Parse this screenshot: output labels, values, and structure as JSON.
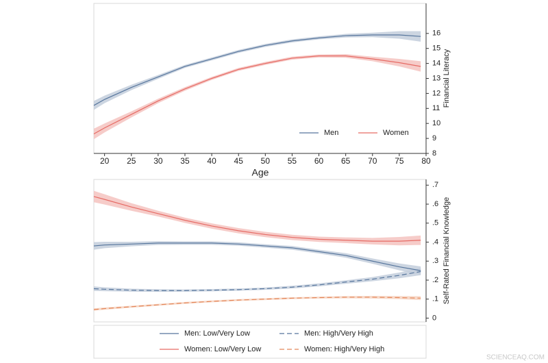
{
  "chart_data": [
    {
      "type": "line",
      "x_label": "Age",
      "y_label": "Financial Literacy",
      "y_axis_side": "right",
      "legend": "bottom-right",
      "x": [
        18,
        20,
        25,
        30,
        35,
        40,
        45,
        50,
        55,
        60,
        65,
        70,
        75,
        79
      ],
      "xlim": [
        18,
        80
      ],
      "xticks": [
        20,
        25,
        30,
        35,
        40,
        45,
        50,
        55,
        60,
        65,
        70,
        75,
        80
      ],
      "ylim": [
        8,
        18
      ],
      "yticks": [
        8,
        9,
        10,
        11,
        12,
        13,
        14,
        15,
        16
      ],
      "series": [
        {
          "name": "Men",
          "color": "#56759c",
          "band_color": "#c3cedc",
          "dash": false,
          "values": [
            11.2,
            11.6,
            12.4,
            13.1,
            13.8,
            14.3,
            14.8,
            15.2,
            15.5,
            15.7,
            15.85,
            15.9,
            15.9,
            15.8
          ],
          "lower": [
            10.9,
            11.35,
            12.22,
            12.97,
            13.7,
            14.2,
            14.7,
            15.1,
            15.4,
            15.6,
            15.73,
            15.75,
            15.65,
            15.45
          ],
          "upper": [
            11.5,
            11.85,
            12.58,
            13.23,
            13.9,
            14.4,
            14.9,
            15.3,
            15.6,
            15.8,
            15.97,
            16.05,
            16.15,
            16.15
          ]
        },
        {
          "name": "Women",
          "color": "#e66a64",
          "band_color": "#f5c3bf",
          "dash": false,
          "values": [
            9.3,
            9.7,
            10.6,
            11.5,
            12.3,
            13.0,
            13.6,
            14.0,
            14.35,
            14.5,
            14.5,
            14.3,
            14.05,
            13.8
          ],
          "lower": [
            8.95,
            9.4,
            10.4,
            11.35,
            12.18,
            12.9,
            13.5,
            13.9,
            14.25,
            14.4,
            14.38,
            14.15,
            13.8,
            13.45
          ],
          "upper": [
            9.65,
            10.0,
            10.8,
            11.65,
            12.42,
            13.1,
            13.7,
            14.1,
            14.45,
            14.6,
            14.62,
            14.45,
            14.3,
            14.15
          ]
        }
      ]
    },
    {
      "type": "line",
      "y_label": "Self-Rated Financial Knowledge",
      "y_axis_side": "right",
      "legend": "below",
      "x": [
        18,
        20,
        25,
        30,
        35,
        40,
        45,
        50,
        55,
        60,
        65,
        70,
        75,
        79
      ],
      "xlim": [
        18,
        80
      ],
      "ylim": [
        -0.02,
        0.73
      ],
      "yticks": [
        0,
        {
          "value": 0.1,
          "label": ".1"
        },
        {
          "value": 0.2,
          "label": ".2"
        },
        {
          "value": 0.3,
          "label": ".3"
        },
        {
          "value": 0.4,
          "label": ".4"
        },
        {
          "value": 0.5,
          "label": ".5"
        },
        {
          "value": 0.6,
          "label": ".6"
        },
        {
          "value": 0.7,
          "label": ".7"
        }
      ],
      "series": [
        {
          "name": "Men: Low/Very Low",
          "color": "#56759c",
          "band_color": "#c3cedc",
          "dash": false,
          "values": [
            0.38,
            0.385,
            0.39,
            0.395,
            0.395,
            0.395,
            0.39,
            0.38,
            0.37,
            0.35,
            0.33,
            0.3,
            0.27,
            0.25
          ],
          "lower": [
            0.36,
            0.368,
            0.378,
            0.385,
            0.386,
            0.386,
            0.381,
            0.371,
            0.36,
            0.34,
            0.318,
            0.286,
            0.252,
            0.228
          ],
          "upper": [
            0.4,
            0.402,
            0.402,
            0.405,
            0.404,
            0.404,
            0.399,
            0.389,
            0.38,
            0.36,
            0.342,
            0.314,
            0.288,
            0.272
          ]
        },
        {
          "name": "Men: High/Very High",
          "color": "#56759c",
          "band_color": "#c3cedc",
          "dash": true,
          "values": [
            0.155,
            0.152,
            0.147,
            0.145,
            0.145,
            0.147,
            0.15,
            0.155,
            0.163,
            0.175,
            0.19,
            0.205,
            0.225,
            0.245
          ],
          "lower": [
            0.143,
            0.142,
            0.139,
            0.138,
            0.139,
            0.141,
            0.144,
            0.149,
            0.156,
            0.167,
            0.181,
            0.194,
            0.21,
            0.226
          ],
          "upper": [
            0.167,
            0.162,
            0.155,
            0.152,
            0.151,
            0.153,
            0.156,
            0.161,
            0.17,
            0.183,
            0.199,
            0.216,
            0.24,
            0.264
          ]
        },
        {
          "name": "Women: Low/Very Low",
          "color": "#e66a64",
          "band_color": "#f5c3bf",
          "dash": false,
          "values": [
            0.64,
            0.625,
            0.585,
            0.55,
            0.515,
            0.485,
            0.46,
            0.44,
            0.425,
            0.415,
            0.41,
            0.405,
            0.405,
            0.41
          ],
          "lower": [
            0.61,
            0.598,
            0.565,
            0.535,
            0.501,
            0.471,
            0.446,
            0.426,
            0.411,
            0.401,
            0.395,
            0.388,
            0.383,
            0.385
          ],
          "upper": [
            0.67,
            0.652,
            0.605,
            0.565,
            0.529,
            0.499,
            0.474,
            0.454,
            0.439,
            0.429,
            0.425,
            0.422,
            0.427,
            0.435
          ]
        },
        {
          "name": "Women: High/Very High",
          "color": "#e4875a",
          "band_color": "#f6d2c0",
          "dash": true,
          "values": [
            0.045,
            0.05,
            0.06,
            0.07,
            0.08,
            0.088,
            0.095,
            0.1,
            0.105,
            0.108,
            0.11,
            0.11,
            0.108,
            0.105
          ],
          "lower": [
            0.039,
            0.044,
            0.055,
            0.065,
            0.075,
            0.083,
            0.09,
            0.095,
            0.1,
            0.103,
            0.104,
            0.103,
            0.1,
            0.095
          ],
          "upper": [
            0.051,
            0.056,
            0.065,
            0.075,
            0.085,
            0.093,
            0.1,
            0.105,
            0.11,
            0.113,
            0.116,
            0.117,
            0.116,
            0.115
          ]
        }
      ]
    }
  ],
  "watermark": "SCIENCEAQ.COM"
}
